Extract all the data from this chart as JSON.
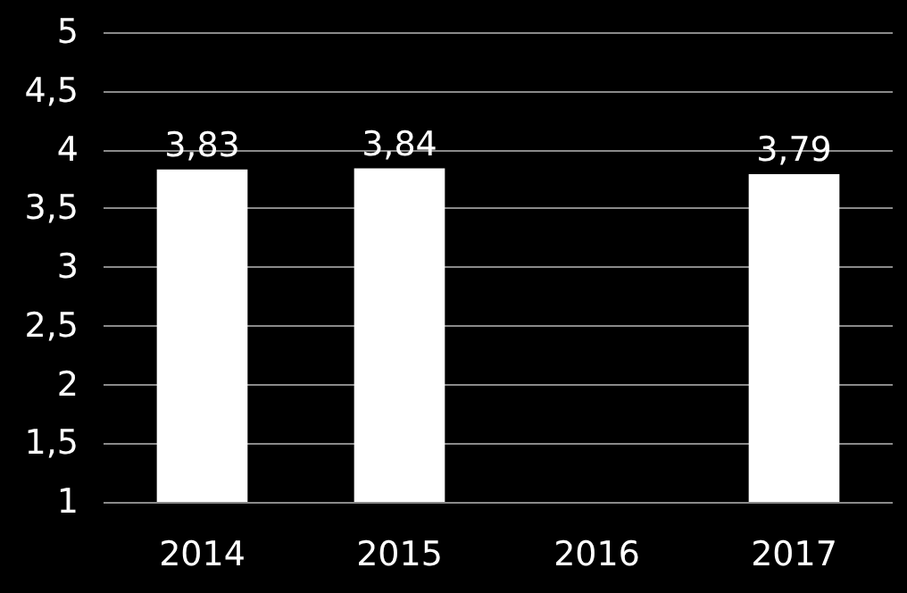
{
  "chart_data": {
    "type": "bar",
    "categories": [
      "2014",
      "2015",
      "2016",
      "2017"
    ],
    "values": [
      3.83,
      3.84,
      null,
      3.79
    ],
    "value_labels": [
      "3,83",
      "3,84",
      null,
      "3,79"
    ],
    "color": "#ffffff",
    "ylim": [
      1,
      5
    ],
    "yticks": [
      1,
      {
        "value": 1.5,
        "label": "1,5"
      },
      2,
      {
        "value": 2.5,
        "label": "2,5"
      },
      3,
      {
        "value": 3.5,
        "label": "3,5"
      },
      4,
      {
        "value": 4.5,
        "label": "4,5"
      },
      5
    ],
    "grid": "y"
  }
}
